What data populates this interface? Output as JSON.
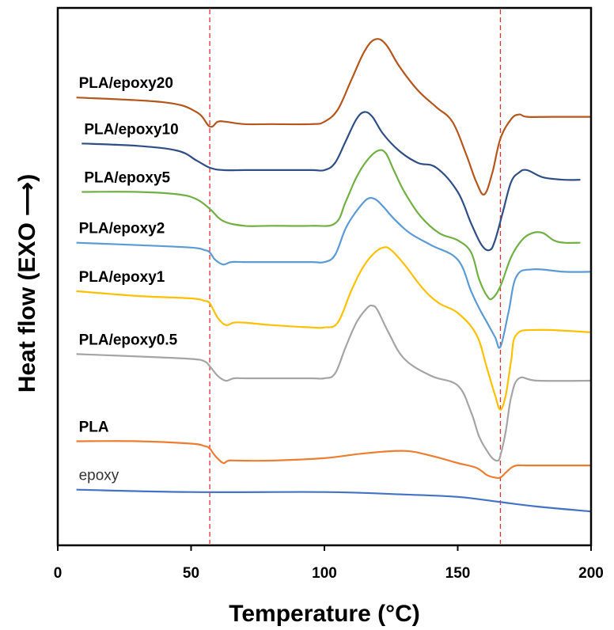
{
  "chart_data": {
    "type": "line",
    "title": "",
    "xlabel": "Temperature (°C)",
    "ylabel": "Heat flow (EXO ⟶)",
    "xlim": [
      0,
      200
    ],
    "x_ticks": [
      "0",
      "50",
      "100",
      "150",
      "200"
    ],
    "y_ticks_shown": false,
    "grid": false,
    "legend": "inline labels beside each curve",
    "reference_lines_x": [
      57,
      166
    ],
    "reference_line_color": "#e03030",
    "series": [
      {
        "name": "PLA/epoxy20",
        "color": "#b5561c",
        "x": [
          7,
          40,
          52,
          57,
          60,
          63,
          70,
          80,
          95,
          100,
          105,
          110,
          115,
          119,
          123,
          128,
          135,
          142,
          148,
          153,
          157,
          160,
          163,
          166,
          170,
          173,
          176,
          185,
          200
        ],
        "y": [
          14.5,
          14.3,
          13.9,
          13.3,
          13.5,
          13.5,
          13.4,
          13.4,
          13.4,
          13.5,
          14.0,
          15.2,
          16.4,
          16.9,
          16.7,
          15.8,
          14.8,
          14.1,
          13.5,
          12.2,
          11.0,
          10.5,
          11.4,
          12.8,
          13.6,
          13.8,
          13.7,
          13.7,
          13.7
        ]
      },
      {
        "name": "PLA/epoxy10",
        "color": "#2f4e85",
        "x": [
          9,
          30,
          45,
          52,
          57,
          62,
          70,
          80,
          95,
          100,
          104,
          108,
          112,
          115,
          118,
          122,
          128,
          135,
          142,
          150,
          155,
          159,
          162,
          164,
          167,
          170,
          173,
          176,
          182,
          190,
          196
        ],
        "y": [
          12.6,
          12.5,
          12.3,
          11.9,
          11.6,
          11.5,
          11.5,
          11.5,
          11.5,
          11.5,
          11.8,
          12.7,
          13.6,
          13.9,
          13.7,
          13.0,
          12.3,
          11.8,
          11.6,
          10.6,
          9.3,
          8.4,
          8.2,
          8.6,
          9.8,
          11.0,
          11.4,
          11.5,
          11.2,
          11.1,
          11.1
        ]
      },
      {
        "name": "PLA/epoxy5",
        "color": "#71b043",
        "x": [
          9,
          30,
          45,
          52,
          57,
          62,
          70,
          80,
          95,
          104,
          108,
          112,
          116,
          120,
          123,
          126,
          130,
          136,
          143,
          150,
          155,
          158,
          161,
          163,
          166,
          170,
          174,
          178,
          182,
          186,
          190,
          196
        ],
        "y": [
          10.6,
          10.6,
          10.5,
          10.3,
          9.9,
          9.4,
          9.2,
          9.2,
          9.2,
          9.3,
          10.2,
          11.2,
          11.9,
          12.3,
          12.2,
          11.5,
          10.6,
          9.6,
          8.9,
          8.6,
          8.1,
          7.0,
          6.3,
          6.2,
          6.7,
          7.9,
          8.6,
          8.9,
          8.9,
          8.6,
          8.5,
          8.5
        ]
      },
      {
        "name": "PLA/epoxy2",
        "color": "#5b9bd5",
        "x": [
          7,
          30,
          50,
          55,
          57,
          59,
          62,
          65,
          70,
          80,
          95,
          100,
          104,
          108,
          112,
          116,
          119,
          122,
          126,
          132,
          140,
          150,
          155,
          158,
          161,
          164,
          166,
          169,
          172,
          178,
          190,
          200
        ],
        "y": [
          8.5,
          8.4,
          8.3,
          8.2,
          8.1,
          7.8,
          7.6,
          7.7,
          7.7,
          7.7,
          7.7,
          7.7,
          8.0,
          9.1,
          9.8,
          10.3,
          10.3,
          10.0,
          9.5,
          8.9,
          8.4,
          7.8,
          6.5,
          5.8,
          5.2,
          4.6,
          4.2,
          5.6,
          7.1,
          7.4,
          7.3,
          7.3
        ]
      },
      {
        "name": "PLA/epoxy1",
        "color": "#ffc000",
        "x": [
          7,
          30,
          50,
          55,
          57,
          60,
          63,
          66,
          70,
          80,
          95,
          100,
          105,
          110,
          114,
          118,
          122,
          125,
          130,
          137,
          143,
          150,
          157,
          161,
          164,
          166,
          168,
          170,
          172,
          180,
          200
        ],
        "y": [
          6.5,
          6.3,
          6.2,
          6.1,
          6.0,
          5.4,
          5.1,
          5.2,
          5.2,
          5.1,
          5.0,
          5.0,
          5.2,
          6.5,
          7.4,
          8.0,
          8.3,
          8.2,
          7.6,
          6.6,
          6.0,
          5.6,
          4.7,
          3.3,
          2.2,
          1.6,
          2.2,
          3.6,
          4.7,
          4.9,
          4.8
        ]
      },
      {
        "name": "PLA/epoxy0.5",
        "color": "#a5a5a5",
        "x": [
          7,
          30,
          50,
          55,
          57,
          60,
          63,
          66,
          70,
          80,
          95,
          100,
          104,
          108,
          112,
          116,
          118,
          120,
          124,
          130,
          140,
          150,
          155,
          158,
          161,
          163,
          165,
          166,
          168,
          170,
          173,
          180,
          200
        ],
        "y": [
          3.9,
          3.8,
          3.7,
          3.6,
          3.4,
          3.0,
          2.8,
          2.9,
          2.9,
          2.9,
          2.9,
          2.9,
          3.1,
          4.2,
          5.2,
          5.8,
          5.9,
          5.7,
          4.8,
          3.7,
          3.0,
          2.6,
          1.5,
          0.5,
          -0.1,
          -0.4,
          -0.5,
          -0.3,
          0.7,
          2.1,
          2.9,
          2.8,
          2.8
        ]
      },
      {
        "name": "PLA",
        "color": "#ed7d31",
        "x": [
          7,
          30,
          50,
          55,
          57,
          59,
          62,
          64,
          68,
          80,
          100,
          115,
          130,
          140,
          150,
          157,
          161,
          164,
          166,
          168,
          170,
          172,
          176,
          185,
          200
        ],
        "y": [
          0.3,
          0.3,
          0.2,
          0.1,
          0.0,
          -0.3,
          -0.6,
          -0.5,
          -0.5,
          -0.5,
          -0.4,
          -0.2,
          -0.1,
          -0.3,
          -0.6,
          -0.8,
          -1.1,
          -1.2,
          -1.2,
          -1.0,
          -0.8,
          -0.7,
          -0.7,
          -0.7,
          -0.7
        ]
      },
      {
        "name": "epoxy",
        "color": "#4472c4",
        "x": [
          7,
          50,
          100,
          130,
          150,
          165,
          180,
          200
        ],
        "y": [
          -1.7,
          -1.8,
          -1.8,
          -1.9,
          -2.0,
          -2.2,
          -2.4,
          -2.6
        ]
      }
    ]
  }
}
